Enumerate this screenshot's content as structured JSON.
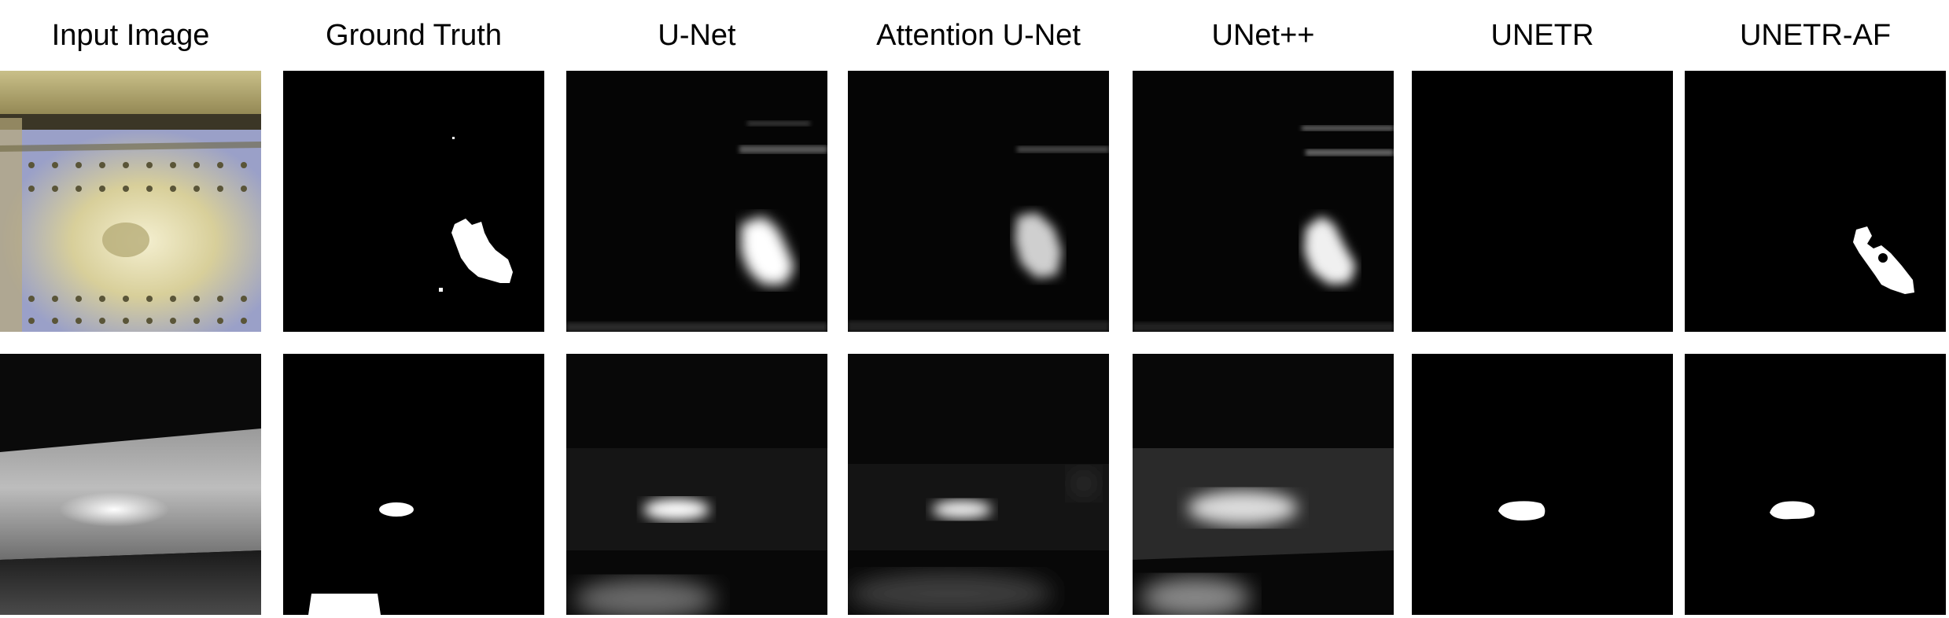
{
  "columns": [
    {
      "title": "Input Image"
    },
    {
      "title": "Ground Truth"
    },
    {
      "title": "U-Net"
    },
    {
      "title": "Attention U-Net"
    },
    {
      "title": "UNet++"
    },
    {
      "title": "UNETR"
    },
    {
      "title": "UNETR-AF"
    }
  ],
  "rows": [
    {
      "scene": "riveted-aircraft-panel"
    },
    {
      "scene": "cylindrical-metal-surface"
    }
  ],
  "colors": {
    "background": "#ffffff",
    "mask": "#ffffff",
    "mask_background": "#000000"
  }
}
